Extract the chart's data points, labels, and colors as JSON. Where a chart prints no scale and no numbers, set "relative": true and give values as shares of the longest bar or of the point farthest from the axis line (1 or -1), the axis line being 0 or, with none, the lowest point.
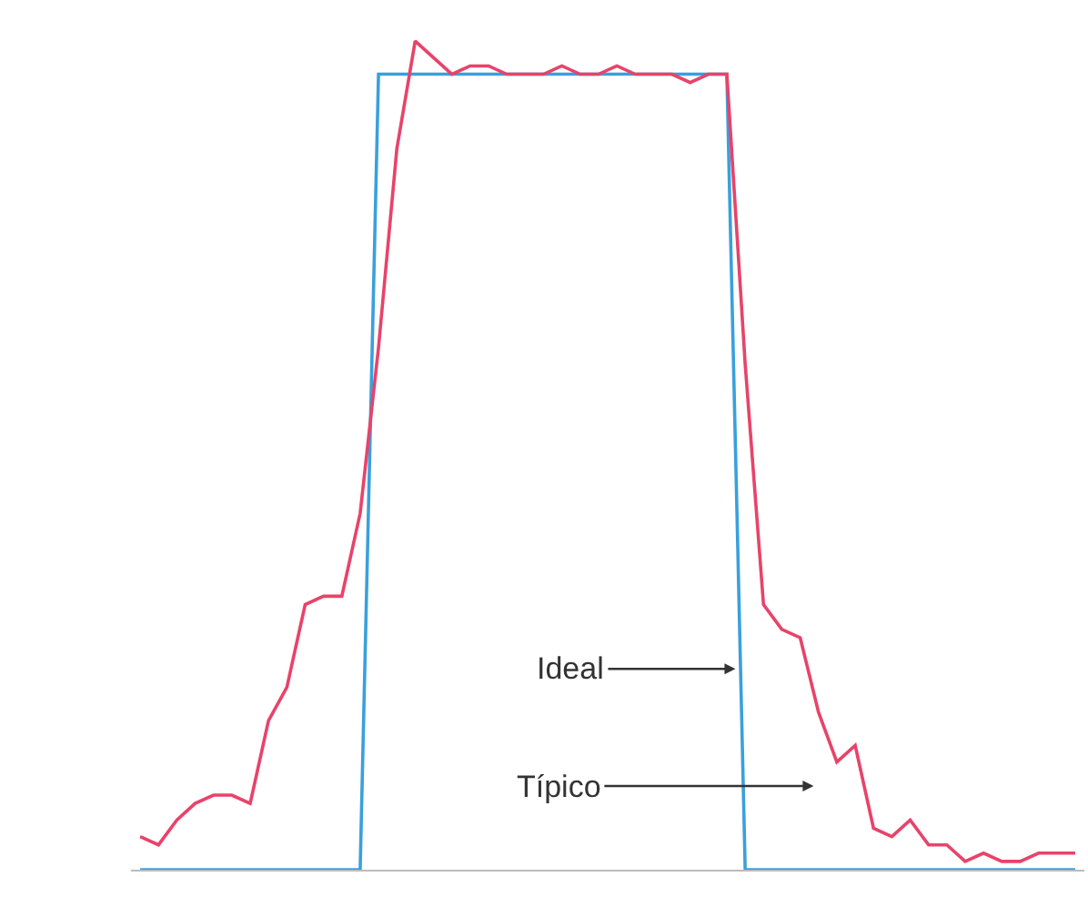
{
  "chart_data": {
    "type": "line",
    "relative": true,
    "line_style": "solid",
    "categories": [
      null,
      null,
      null,
      null,
      null,
      null,
      null,
      null,
      null,
      null,
      null,
      null,
      null,
      null,
      null,
      null,
      null,
      null,
      null,
      null,
      null,
      null,
      null,
      null,
      null,
      null,
      null,
      null,
      null,
      null,
      null,
      null,
      null,
      null,
      null,
      null,
      null,
      null,
      null,
      null,
      null,
      null,
      null,
      null,
      null,
      null,
      null,
      null,
      null,
      null,
      null,
      null
    ],
    "series": [
      {
        "color": "#3aa0dc",
        "values": [
          0,
          0,
          0,
          0,
          0,
          0,
          0,
          0,
          0,
          0,
          0,
          0,
          0,
          0.96,
          0.96,
          0.96,
          0.96,
          0.96,
          0.96,
          0.96,
          0.96,
          0.96,
          0.96,
          0.96,
          0.96,
          0.96,
          0.96,
          0.96,
          0.96,
          0.96,
          0.96,
          0.96,
          0.96,
          0,
          0,
          0,
          0,
          0,
          0,
          0,
          0,
          0,
          0,
          0,
          0,
          0,
          0,
          0,
          0,
          0,
          0,
          0
        ]
      },
      {
        "color": "#e8436a",
        "values": [
          0.04,
          0.03,
          0.06,
          0.08,
          0.09,
          0.09,
          0.08,
          0.18,
          0.22,
          0.32,
          0.33,
          0.33,
          0.43,
          0.63,
          0.87,
          1.0,
          0.98,
          0.96,
          0.97,
          0.97,
          0.96,
          0.96,
          0.96,
          0.97,
          0.96,
          0.96,
          0.97,
          0.96,
          0.96,
          0.96,
          0.95,
          0.96,
          0.96,
          0.61,
          0.32,
          0.29,
          0.28,
          0.19,
          0.13,
          0.15,
          0.05,
          0.04,
          0.06,
          0.03,
          0.03,
          0.01,
          0.02,
          0.01,
          0.01,
          0.02,
          0.02,
          0.02
        ]
      }
    ],
    "annotations": [
      "Ideal",
      "Típico"
    ]
  }
}
